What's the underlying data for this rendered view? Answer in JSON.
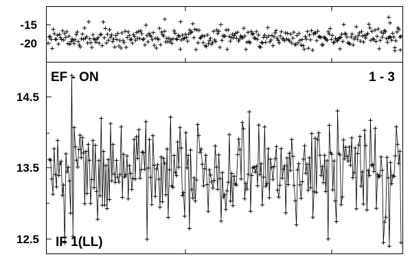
{
  "chart_data": [
    {
      "type": "scatter",
      "panel": "top",
      "title": "",
      "xlabel": "",
      "ylabel": "",
      "ylim": [
        -23,
        -11
      ],
      "yticks": [
        -15,
        -20
      ],
      "ytick_labels": [
        "-15",
        "-20"
      ],
      "x_count": 340,
      "series": [
        {
          "mean": -18.5,
          "spread": 1.4,
          "outliers": [
            [
              240,
              -13.5
            ],
            [
              263,
              -14.2
            ],
            [
              495,
              -21.5
            ],
            [
              566,
              -13.0
            ],
            [
              568,
              -14.5
            ],
            [
              575,
              -22.0
            ],
            [
              583,
              -21.8
            ]
          ]
        }
      ]
    },
    {
      "type": "line",
      "panel": "bottom",
      "title": "",
      "xlabel": "",
      "ylabel": "",
      "ylim": [
        12.35,
        14.85
      ],
      "yticks": [
        14.5,
        13.5,
        12.5
      ],
      "ytick_labels": [
        "14.5",
        "13.5",
        "12.5"
      ],
      "markers": "plus",
      "x_count": 300,
      "series": [
        {
          "mean": 13.45,
          "spread": 0.33,
          "peaks": [
            [
              104,
              14.8
            ],
            [
              213,
              14.15
            ],
            [
              355,
              14.05
            ],
            [
              588,
              14.45
            ],
            [
              275,
              12.65
            ],
            [
              558,
              12.45
            ],
            [
              567,
              12.4
            ],
            [
              587,
              12.45
            ]
          ]
        }
      ]
    }
  ],
  "annotations": {
    "top_left": "EF - ON",
    "top_right": "1 - 3",
    "bottom_left": "IF 1(LL)"
  }
}
